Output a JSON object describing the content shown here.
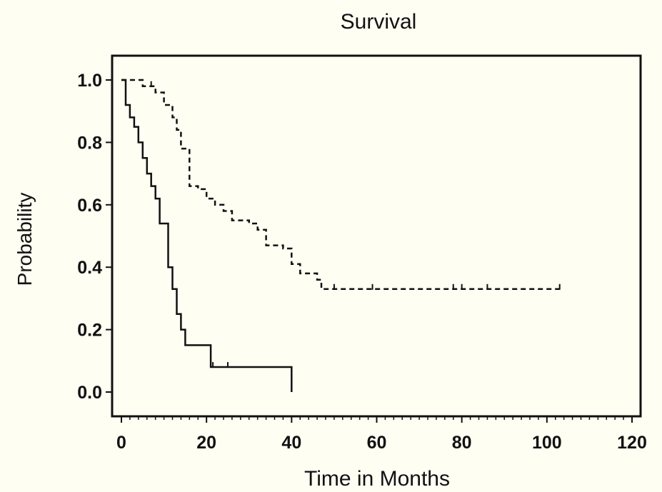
{
  "chart_data": {
    "type": "line",
    "title": "Survival",
    "xlabel": "Time in Months",
    "ylabel": "Probability",
    "xlim": [
      0,
      120
    ],
    "ylim": [
      -0.07,
      1.07
    ],
    "xticks": [
      "0",
      "20",
      "40",
      "60",
      "80",
      "100",
      "120"
    ],
    "yticks": [
      "0.0",
      "0.2",
      "0.4",
      "0.6",
      "0.8",
      "1.0"
    ],
    "grid": false,
    "legend": "none",
    "colors": {
      "background": "#fffef3",
      "ink": "#111111"
    },
    "series": [
      {
        "style": "solid",
        "step": true,
        "x": [
          0,
          1,
          2,
          3,
          4,
          5,
          6,
          7,
          8,
          9,
          11,
          12,
          13,
          14,
          15,
          21,
          24,
          40,
          40
        ],
        "y": [
          1.0,
          0.92,
          0.88,
          0.85,
          0.8,
          0.75,
          0.7,
          0.66,
          0.62,
          0.54,
          0.4,
          0.33,
          0.25,
          0.2,
          0.15,
          0.08,
          0.08,
          0.08,
          0.0
        ],
        "censored_x": [
          21.5,
          25
        ]
      },
      {
        "style": "dashed",
        "step": true,
        "x": [
          0,
          5,
          8,
          10,
          12,
          13,
          14,
          16,
          18,
          20,
          22,
          24,
          26,
          30,
          32,
          34,
          38,
          40,
          42,
          46,
          47,
          103
        ],
        "y": [
          1.0,
          0.98,
          0.96,
          0.92,
          0.88,
          0.84,
          0.78,
          0.66,
          0.65,
          0.62,
          0.6,
          0.58,
          0.55,
          0.54,
          0.52,
          0.47,
          0.46,
          0.41,
          0.38,
          0.36,
          0.33,
          0.33
        ],
        "censored_x": [
          7,
          50,
          59,
          78,
          80,
          86,
          103
        ]
      }
    ]
  }
}
